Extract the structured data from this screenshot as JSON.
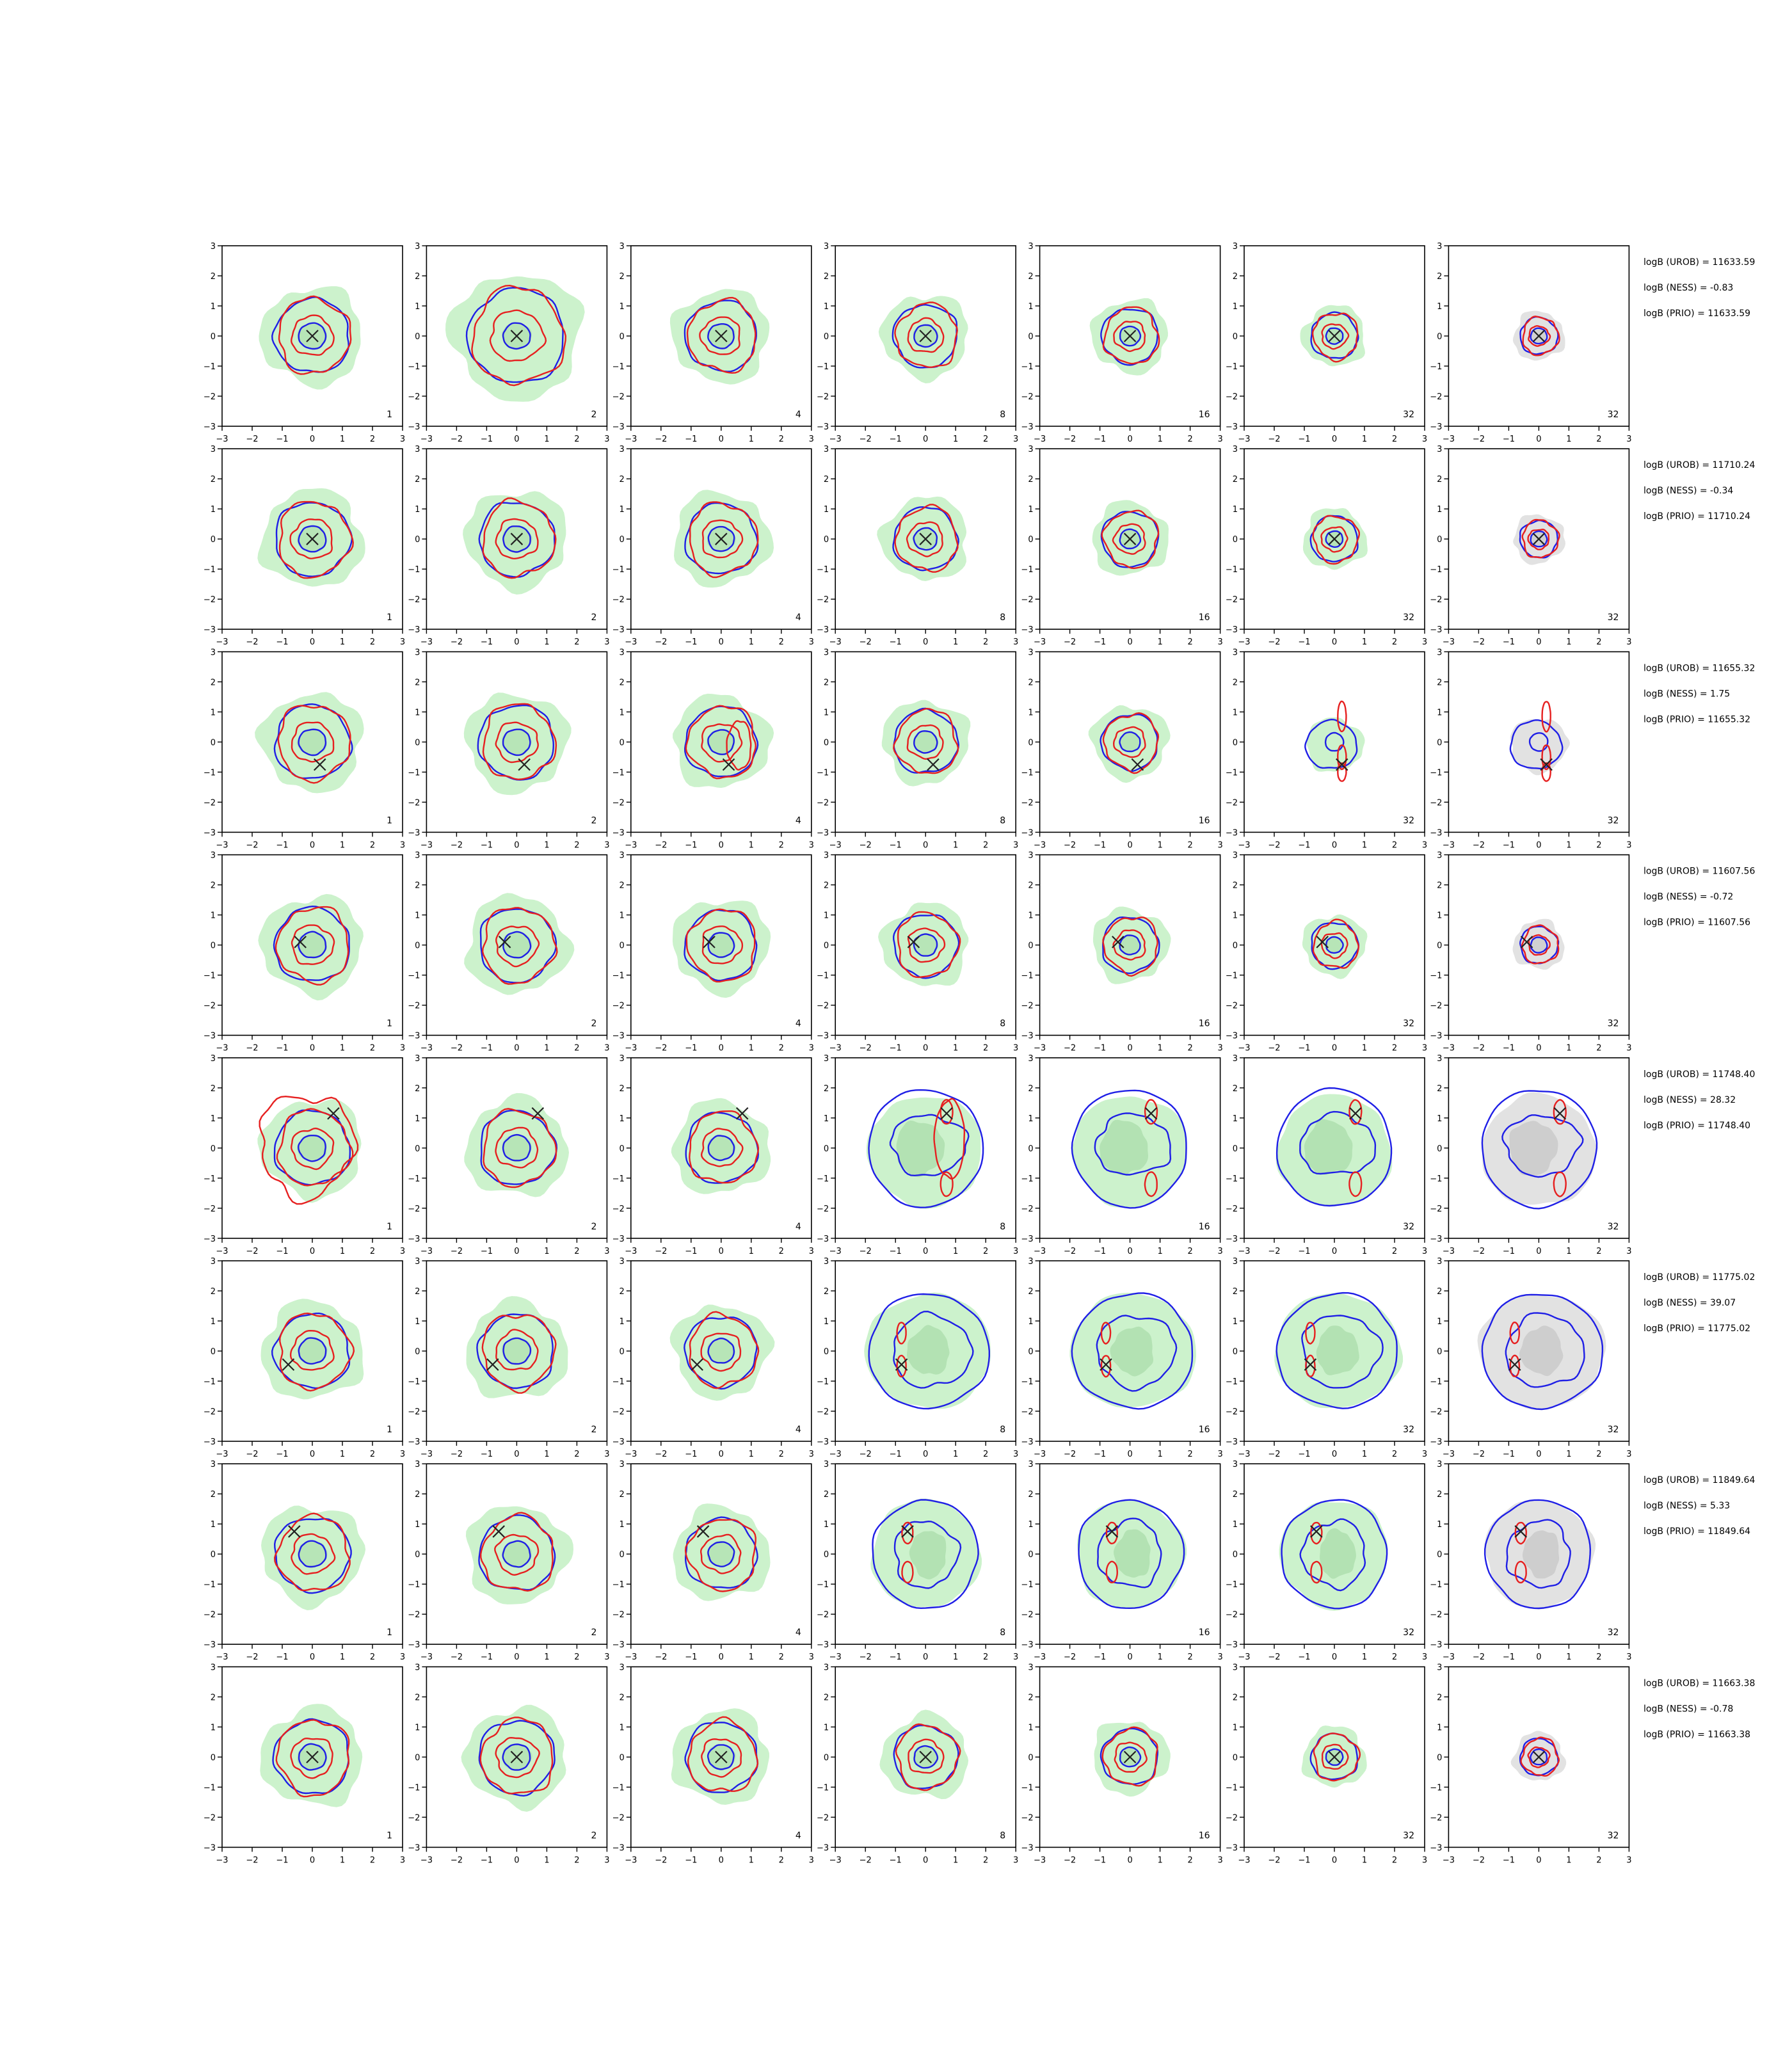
{
  "chart_data": {
    "type": "contour-grid",
    "rows": 8,
    "cols": 7,
    "xlim": [
      -3,
      3
    ],
    "ylim": [
      -3,
      3
    ],
    "ticks": [
      "−3",
      "−2",
      "−1",
      "0",
      "1",
      "2",
      "3"
    ],
    "tick_values": [
      -3,
      -2,
      -1,
      0,
      1,
      2,
      3
    ],
    "col_labels": [
      "1",
      "2",
      "4",
      "8",
      "16",
      "32",
      "32"
    ],
    "colors": {
      "blue": "#1f1fe6",
      "red": "#e62020",
      "green_fill": "#ccf2cc",
      "green_dark": "#a8dca8",
      "grey_fill": "#e2e2e2",
      "grey_dark": "#c6c6c6",
      "marker": "#222222"
    },
    "row_data": [
      {
        "marker": [
          0,
          0
        ],
        "ann": [
          "logB (UROB) = 11633.59",
          "logB (NESS) = -0.83",
          "logB (PRIO) = 11633.59"
        ]
      },
      {
        "marker": [
          0,
          0
        ],
        "ann": [
          "logB (UROB) = 11710.24",
          "logB (NESS) = -0.34",
          "logB (PRIO) = 11710.24"
        ]
      },
      {
        "marker": [
          0.25,
          -0.75
        ],
        "ann": [
          "logB (UROB) = 11655.32",
          "logB (NESS) = 1.75",
          "logB (PRIO) = 11655.32"
        ]
      },
      {
        "marker": [
          -0.4,
          0.1
        ],
        "ann": [
          "logB (UROB) = 11607.56",
          "logB (NESS) = -0.72",
          "logB (PRIO) = 11607.56"
        ]
      },
      {
        "marker": [
          0.7,
          1.15
        ],
        "ann": [
          "logB (UROB) = 11748.40",
          "logB (NESS) = 28.32",
          "logB (PRIO) = 11748.40"
        ]
      },
      {
        "marker": [
          -0.8,
          -0.45
        ],
        "ann": [
          "logB (UROB) = 11775.02",
          "logB (NESS) = 39.07",
          "logB (PRIO) = 11775.02"
        ]
      },
      {
        "marker": [
          -0.6,
          0.75
        ],
        "ann": [
          "logB (UROB) = 11849.64",
          "logB (NESS) = 5.33",
          "logB (PRIO) = 11849.64"
        ]
      },
      {
        "marker": [
          0,
          0
        ],
        "ann": [
          "logB (UROB) = 11663.38",
          "logB (NESS) = -0.78",
          "logB (PRIO) = 11663.38"
        ]
      }
    ]
  }
}
